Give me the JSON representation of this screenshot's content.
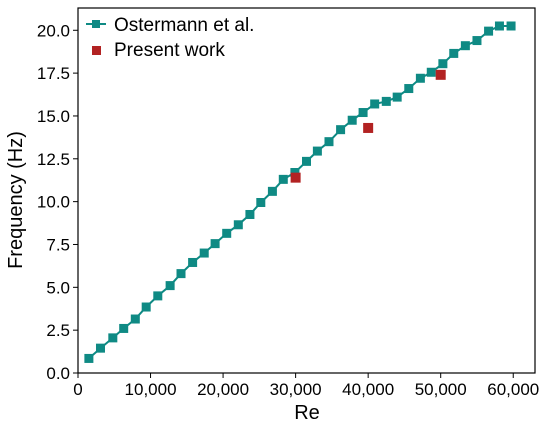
{
  "chart_data": {
    "type": "line",
    "title": "",
    "xlabel": "Re",
    "ylabel": "Frequency (Hz)",
    "xlim": [
      0,
      63000
    ],
    "ylim": [
      0,
      21.3
    ],
    "grid": false,
    "legend_position": "top-left",
    "x_ticks": [
      0,
      10000,
      20000,
      30000,
      40000,
      50000,
      60000
    ],
    "x_tick_labels": [
      "0",
      "10,000",
      "20,000",
      "30,000",
      "40,000",
      "50,000",
      "60,000"
    ],
    "y_ticks": [
      0,
      2.5,
      5,
      7.5,
      10,
      12.5,
      15,
      17.5,
      20
    ],
    "y_tick_labels": [
      "0.0",
      "2.5",
      "5.0",
      "7.5",
      "10.0",
      "12.5",
      "15.0",
      "17.5",
      "20.0"
    ],
    "series": [
      {
        "name": "Ostermann et al.",
        "style": "line+square",
        "color": "#0f8a84",
        "x": [
          1500,
          3100,
          4800,
          6300,
          7900,
          9400,
          11000,
          12700,
          14200,
          15800,
          17400,
          18900,
          20500,
          22100,
          23700,
          25200,
          26800,
          28300,
          29900,
          31500,
          33000,
          34600,
          36200,
          37800,
          39300,
          40900,
          42500,
          44000,
          45600,
          47200,
          48700,
          50300,
          51800,
          53400,
          55000,
          56600,
          58100,
          59700
        ],
        "y": [
          0.85,
          1.45,
          2.05,
          2.6,
          3.15,
          3.85,
          4.5,
          5.1,
          5.8,
          6.45,
          7.0,
          7.55,
          8.15,
          8.65,
          9.25,
          9.95,
          10.6,
          11.3,
          11.7,
          12.35,
          12.95,
          13.5,
          14.2,
          14.75,
          15.2,
          15.7,
          15.85,
          16.1,
          16.6,
          17.2,
          17.55,
          18.05,
          18.65,
          19.1,
          19.4,
          19.95,
          20.25,
          20.25
        ]
      },
      {
        "name": "Present work",
        "style": "square",
        "color": "#b22222",
        "x": [
          30000,
          40000,
          50000
        ],
        "y": [
          11.4,
          14.3,
          17.4
        ]
      }
    ]
  }
}
